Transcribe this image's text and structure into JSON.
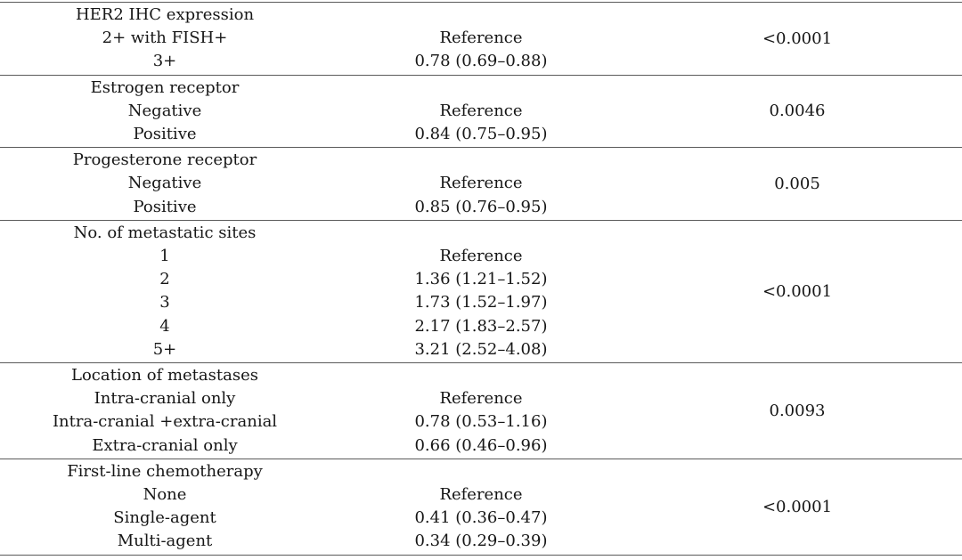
{
  "page": {
    "background_color": "#ffffff",
    "text_color": "#161616",
    "rule_color": "#5a5a5a"
  },
  "table": {
    "sections": [
      {
        "category": "HER2 IHC expression",
        "rows": [
          {
            "label": "2+ with FISH+",
            "value": "Reference"
          },
          {
            "label": "3+",
            "value": "0.78 (0.69–0.88)"
          }
        ],
        "p_value": "<0.0001"
      },
      {
        "category": "Estrogen receptor",
        "rows": [
          {
            "label": "Negative",
            "value": "Reference"
          },
          {
            "label": "Positive",
            "value": "0.84 (0.75–0.95)"
          }
        ],
        "p_value": "0.0046"
      },
      {
        "category": "Progesterone receptor",
        "rows": [
          {
            "label": "Negative",
            "value": "Reference"
          },
          {
            "label": "Positive",
            "value": "0.85 (0.76–0.95)"
          }
        ],
        "p_value": "0.005"
      },
      {
        "category": "No. of metastatic sites",
        "rows": [
          {
            "label": "1",
            "value": "Reference"
          },
          {
            "label": "2",
            "value": "1.36 (1.21–1.52)"
          },
          {
            "label": "3",
            "value": "1.73 (1.52–1.97)"
          },
          {
            "label": "4",
            "value": "2.17 (1.83–2.57)"
          },
          {
            "label": "5+",
            "value": "3.21 (2.52–4.08)"
          }
        ],
        "p_value": "<0.0001"
      },
      {
        "category": "Location of metastases",
        "rows": [
          {
            "label": "Intra-cranial only",
            "value": "Reference"
          },
          {
            "label": "Intra-cranial +extra-cranial",
            "value": "0.78 (0.53–1.16)"
          },
          {
            "label": "Extra-cranial only",
            "value": "0.66 (0.46–0.96)"
          }
        ],
        "p_value": "0.0093"
      },
      {
        "category": "First-line chemotherapy",
        "rows": [
          {
            "label": "None",
            "value": "Reference"
          },
          {
            "label": "Single-agent",
            "value": "0.41 (0.36–0.47)"
          },
          {
            "label": "Multi-agent",
            "value": "0.34 (0.29–0.39)"
          }
        ],
        "p_value": "<0.0001"
      }
    ]
  }
}
